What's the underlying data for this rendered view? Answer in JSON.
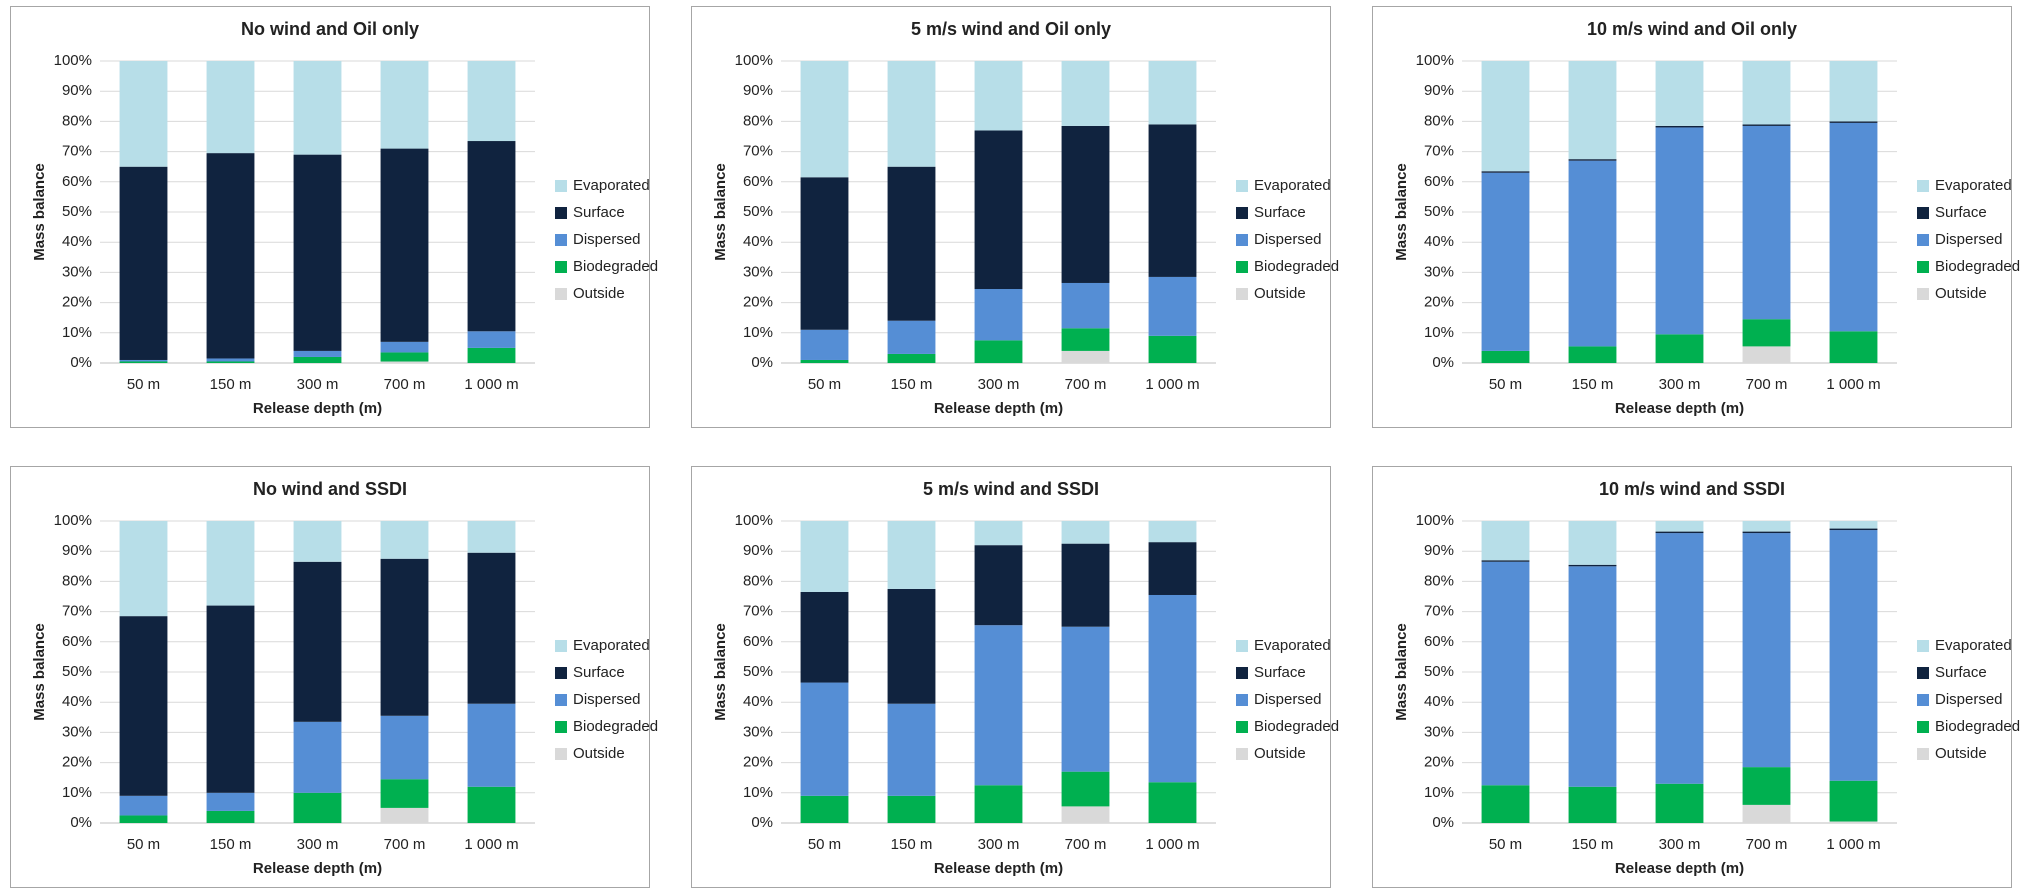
{
  "chart_data": [
    {
      "type": "bar",
      "stacked": true,
      "title": "No wind and Oil only",
      "x_label": "Release depth (m)",
      "y_label": "Mass balance",
      "categories": [
        "50 m",
        "150 m",
        "300 m",
        "700 m",
        "1 000 m"
      ],
      "series": [
        {
          "name": "Outside",
          "color": "#d9d9d9",
          "values": [
            0,
            0,
            0,
            0.5,
            0
          ]
        },
        {
          "name": "Biodegraded",
          "color": "#00b050",
          "values": [
            0.5,
            0.5,
            2,
            3,
            5
          ]
        },
        {
          "name": "Dispersed",
          "color": "#558ed5",
          "values": [
            0.5,
            1,
            2,
            3.5,
            5.5
          ]
        },
        {
          "name": "Surface",
          "color": "#10233f",
          "values": [
            64,
            68,
            65,
            64,
            63
          ]
        },
        {
          "name": "Evaporated",
          "color": "#b7dee8",
          "values": [
            35,
            30.5,
            31,
            29,
            26.5
          ]
        }
      ],
      "ylim": [
        0,
        100
      ],
      "yticks": [
        {
          "value": 0,
          "label": "0%"
        },
        {
          "value": 10,
          "label": "10%"
        },
        {
          "value": 20,
          "label": "20%"
        },
        {
          "value": 30,
          "label": "30%"
        },
        {
          "value": 40,
          "label": "40%"
        },
        {
          "value": 50,
          "label": "50%"
        },
        {
          "value": 60,
          "label": "60%"
        },
        {
          "value": 70,
          "label": "70%"
        },
        {
          "value": 80,
          "label": "80%"
        },
        {
          "value": 90,
          "label": "90%"
        },
        {
          "value": 100,
          "label": "100%"
        }
      ],
      "grid": true,
      "legend": "right"
    },
    {
      "type": "bar",
      "stacked": true,
      "title": "5 m/s wind and Oil only",
      "x_label": "Release depth (m)",
      "y_label": "Mass balance",
      "categories": [
        "50 m",
        "150 m",
        "300 m",
        "700 m",
        "1 000 m"
      ],
      "series": [
        {
          "name": "Outside",
          "color": "#d9d9d9",
          "values": [
            0,
            0,
            0,
            4,
            0
          ]
        },
        {
          "name": "Biodegraded",
          "color": "#00b050",
          "values": [
            1,
            3,
            7.5,
            7.5,
            9
          ]
        },
        {
          "name": "Dispersed",
          "color": "#558ed5",
          "values": [
            10,
            11,
            17,
            15,
            19.5
          ]
        },
        {
          "name": "Surface",
          "color": "#10233f",
          "values": [
            50.5,
            51,
            52.5,
            52,
            50.5
          ]
        },
        {
          "name": "Evaporated",
          "color": "#b7dee8",
          "values": [
            38.5,
            35,
            23,
            21.5,
            21
          ]
        }
      ],
      "ylim": [
        0,
        100
      ],
      "yticks": [
        {
          "value": 0,
          "label": "0%"
        },
        {
          "value": 10,
          "label": "10%"
        },
        {
          "value": 20,
          "label": "20%"
        },
        {
          "value": 30,
          "label": "30%"
        },
        {
          "value": 40,
          "label": "40%"
        },
        {
          "value": 50,
          "label": "50%"
        },
        {
          "value": 60,
          "label": "60%"
        },
        {
          "value": 70,
          "label": "70%"
        },
        {
          "value": 80,
          "label": "80%"
        },
        {
          "value": 90,
          "label": "90%"
        },
        {
          "value": 100,
          "label": "100%"
        }
      ],
      "grid": true,
      "legend": "right"
    },
    {
      "type": "bar",
      "stacked": true,
      "title": "10 m/s wind and Oil only",
      "x_label": "Release depth (m)",
      "y_label": "Mass balance",
      "categories": [
        "50 m",
        "150 m",
        "300 m",
        "700 m",
        "1 000 m"
      ],
      "series": [
        {
          "name": "Outside",
          "color": "#d9d9d9",
          "values": [
            0,
            0,
            0,
            5.5,
            0
          ]
        },
        {
          "name": "Biodegraded",
          "color": "#00b050",
          "values": [
            4,
            5.5,
            9.5,
            9,
            10.5
          ]
        },
        {
          "name": "Dispersed",
          "color": "#558ed5",
          "values": [
            59,
            61.5,
            68.5,
            64,
            69
          ]
        },
        {
          "name": "Surface",
          "color": "#10233f",
          "values": [
            0.5,
            0.5,
            0.5,
            0.5,
            0.5
          ]
        },
        {
          "name": "Evaporated",
          "color": "#b7dee8",
          "values": [
            36.5,
            32.5,
            21.5,
            21,
            20
          ]
        }
      ],
      "ylim": [
        0,
        100
      ],
      "yticks": [
        {
          "value": 0,
          "label": "0%"
        },
        {
          "value": 10,
          "label": "10%"
        },
        {
          "value": 20,
          "label": "20%"
        },
        {
          "value": 30,
          "label": "30%"
        },
        {
          "value": 40,
          "label": "40%"
        },
        {
          "value": 50,
          "label": "50%"
        },
        {
          "value": 60,
          "label": "60%"
        },
        {
          "value": 70,
          "label": "70%"
        },
        {
          "value": 80,
          "label": "80%"
        },
        {
          "value": 90,
          "label": "90%"
        },
        {
          "value": 100,
          "label": "100%"
        }
      ],
      "grid": true,
      "legend": "right"
    },
    {
      "type": "bar",
      "stacked": true,
      "title": "No wind and SSDI",
      "x_label": "Release depth (m)",
      "y_label": "Mass balance",
      "categories": [
        "50 m",
        "150 m",
        "300 m",
        "700 m",
        "1 000 m"
      ],
      "series": [
        {
          "name": "Outside",
          "color": "#d9d9d9",
          "values": [
            0,
            0,
            0,
            5,
            0
          ]
        },
        {
          "name": "Biodegraded",
          "color": "#00b050",
          "values": [
            2.5,
            4,
            10,
            9.5,
            12
          ]
        },
        {
          "name": "Dispersed",
          "color": "#558ed5",
          "values": [
            6.5,
            6,
            23.5,
            21,
            27.5
          ]
        },
        {
          "name": "Surface",
          "color": "#10233f",
          "values": [
            59.5,
            62,
            53,
            52,
            50
          ]
        },
        {
          "name": "Evaporated",
          "color": "#b7dee8",
          "values": [
            31.5,
            28,
            13.5,
            12.5,
            10.5
          ]
        }
      ],
      "ylim": [
        0,
        100
      ],
      "yticks": [
        {
          "value": 0,
          "label": "0%"
        },
        {
          "value": 10,
          "label": "10%"
        },
        {
          "value": 20,
          "label": "20%"
        },
        {
          "value": 30,
          "label": "30%"
        },
        {
          "value": 40,
          "label": "40%"
        },
        {
          "value": 50,
          "label": "50%"
        },
        {
          "value": 60,
          "label": "60%"
        },
        {
          "value": 70,
          "label": "70%"
        },
        {
          "value": 80,
          "label": "80%"
        },
        {
          "value": 90,
          "label": "90%"
        },
        {
          "value": 100,
          "label": "100%"
        }
      ],
      "grid": true,
      "legend": "right"
    },
    {
      "type": "bar",
      "stacked": true,
      "title": "5 m/s wind and SSDI",
      "x_label": "Release depth (m)",
      "y_label": "Mass balance",
      "categories": [
        "50 m",
        "150 m",
        "300 m",
        "700 m",
        "1 000 m"
      ],
      "series": [
        {
          "name": "Outside",
          "color": "#d9d9d9",
          "values": [
            0,
            0,
            0,
            5.5,
            0
          ]
        },
        {
          "name": "Biodegraded",
          "color": "#00b050",
          "values": [
            9,
            9,
            12.5,
            11.5,
            13.5
          ]
        },
        {
          "name": "Dispersed",
          "color": "#558ed5",
          "values": [
            37.5,
            30.5,
            53,
            48,
            62
          ]
        },
        {
          "name": "Surface",
          "color": "#10233f",
          "values": [
            30,
            38,
            26.5,
            27.5,
            17.5
          ]
        },
        {
          "name": "Evaporated",
          "color": "#b7dee8",
          "values": [
            23.5,
            22.5,
            8,
            7.5,
            7
          ]
        }
      ],
      "ylim": [
        0,
        100
      ],
      "yticks": [
        {
          "value": 0,
          "label": "0%"
        },
        {
          "value": 10,
          "label": "10%"
        },
        {
          "value": 20,
          "label": "20%"
        },
        {
          "value": 30,
          "label": "30%"
        },
        {
          "value": 40,
          "label": "40%"
        },
        {
          "value": 50,
          "label": "50%"
        },
        {
          "value": 60,
          "label": "60%"
        },
        {
          "value": 70,
          "label": "70%"
        },
        {
          "value": 80,
          "label": "80%"
        },
        {
          "value": 90,
          "label": "90%"
        },
        {
          "value": 100,
          "label": "100%"
        }
      ],
      "grid": true,
      "legend": "right"
    },
    {
      "type": "bar",
      "stacked": true,
      "title": "10 m/s wind and SSDI",
      "x_label": "Release depth (m)",
      "y_label": "Mass balance",
      "categories": [
        "50 m",
        "150 m",
        "300 m",
        "700 m",
        "1 000 m"
      ],
      "series": [
        {
          "name": "Outside",
          "color": "#d9d9d9",
          "values": [
            0,
            0,
            0,
            6,
            0.5
          ]
        },
        {
          "name": "Biodegraded",
          "color": "#00b050",
          "values": [
            12.5,
            12,
            13,
            12.5,
            13.5
          ]
        },
        {
          "name": "Dispersed",
          "color": "#558ed5",
          "values": [
            74,
            73,
            83,
            77.5,
            83
          ]
        },
        {
          "name": "Surface",
          "color": "#10233f",
          "values": [
            0.5,
            0.5,
            0.5,
            0.5,
            0.5
          ]
        },
        {
          "name": "Evaporated",
          "color": "#b7dee8",
          "values": [
            13,
            14.5,
            3.5,
            3.5,
            2.5
          ]
        }
      ],
      "ylim": [
        0,
        100
      ],
      "yticks": [
        {
          "value": 0,
          "label": "0%"
        },
        {
          "value": 10,
          "label": "10%"
        },
        {
          "value": 20,
          "label": "20%"
        },
        {
          "value": 30,
          "label": "30%"
        },
        {
          "value": 40,
          "label": "40%"
        },
        {
          "value": 50,
          "label": "50%"
        },
        {
          "value": 60,
          "label": "60%"
        },
        {
          "value": 70,
          "label": "70%"
        },
        {
          "value": 80,
          "label": "80%"
        },
        {
          "value": 90,
          "label": "90%"
        },
        {
          "value": 100,
          "label": "100%"
        }
      ],
      "grid": true,
      "legend": "right"
    }
  ]
}
